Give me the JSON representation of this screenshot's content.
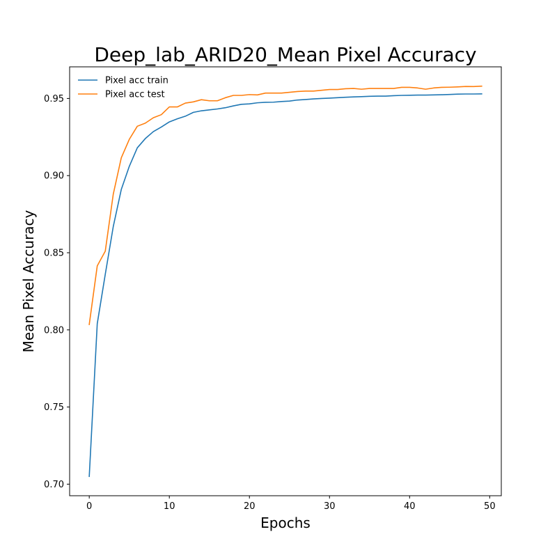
{
  "chart_data": {
    "type": "line",
    "title": "Deep_lab_ARID20_Mean Pixel Accuracy",
    "xlabel": "Epochs",
    "ylabel": "Mean Pixel Accuracy",
    "xlim": [
      -2.45,
      51.45
    ],
    "ylim": [
      0.6925,
      0.9705
    ],
    "xticks": [
      0,
      10,
      20,
      30,
      40,
      50
    ],
    "yticks": [
      0.7,
      0.75,
      0.8,
      0.85,
      0.9,
      0.95
    ],
    "xtick_labels": [
      "0",
      "10",
      "20",
      "30",
      "40",
      "50"
    ],
    "ytick_labels": [
      "0.70",
      "0.75",
      "0.80",
      "0.85",
      "0.90",
      "0.95"
    ],
    "grid": false,
    "legend_position": "upper-left",
    "x": [
      0,
      1,
      2,
      3,
      4,
      5,
      6,
      7,
      8,
      9,
      10,
      11,
      12,
      13,
      14,
      15,
      16,
      17,
      18,
      19,
      20,
      21,
      22,
      23,
      24,
      25,
      26,
      27,
      28,
      29,
      30,
      31,
      32,
      33,
      34,
      35,
      36,
      37,
      38,
      39,
      40,
      41,
      42,
      43,
      44,
      45,
      46,
      47,
      48,
      49
    ],
    "series": [
      {
        "name": "Pixel acc train",
        "color": "#1f77b4",
        "values": [
          0.705,
          0.804,
          0.836,
          0.867,
          0.891,
          0.906,
          0.918,
          0.924,
          0.9285,
          0.9315,
          0.9348,
          0.9368,
          0.9385,
          0.941,
          0.942,
          0.9426,
          0.9432,
          0.944,
          0.9452,
          0.9462,
          0.9465,
          0.9472,
          0.9475,
          0.9476,
          0.948,
          0.9483,
          0.949,
          0.9493,
          0.9497,
          0.95,
          0.9502,
          0.9505,
          0.9508,
          0.951,
          0.9512,
          0.9514,
          0.9515,
          0.9515,
          0.9518,
          0.952,
          0.9521,
          0.9522,
          0.9522,
          0.9523,
          0.9524,
          0.9526,
          0.9528,
          0.9529,
          0.9529,
          0.953
        ]
      },
      {
        "name": "Pixel acc test",
        "color": "#ff7f0e",
        "values": [
          0.8035,
          0.8415,
          0.851,
          0.888,
          0.9115,
          0.9235,
          0.932,
          0.934,
          0.9375,
          0.9395,
          0.9445,
          0.9445,
          0.947,
          0.9478,
          0.9492,
          0.9485,
          0.9485,
          0.9505,
          0.952,
          0.952,
          0.9525,
          0.9523,
          0.9535,
          0.9535,
          0.9535,
          0.954,
          0.9545,
          0.9548,
          0.9548,
          0.9553,
          0.9558,
          0.9558,
          0.9563,
          0.9565,
          0.956,
          0.9565,
          0.9565,
          0.9565,
          0.9565,
          0.9572,
          0.9572,
          0.9568,
          0.956,
          0.9568,
          0.9572,
          0.9573,
          0.9575,
          0.9578,
          0.9577,
          0.958
        ]
      }
    ]
  }
}
